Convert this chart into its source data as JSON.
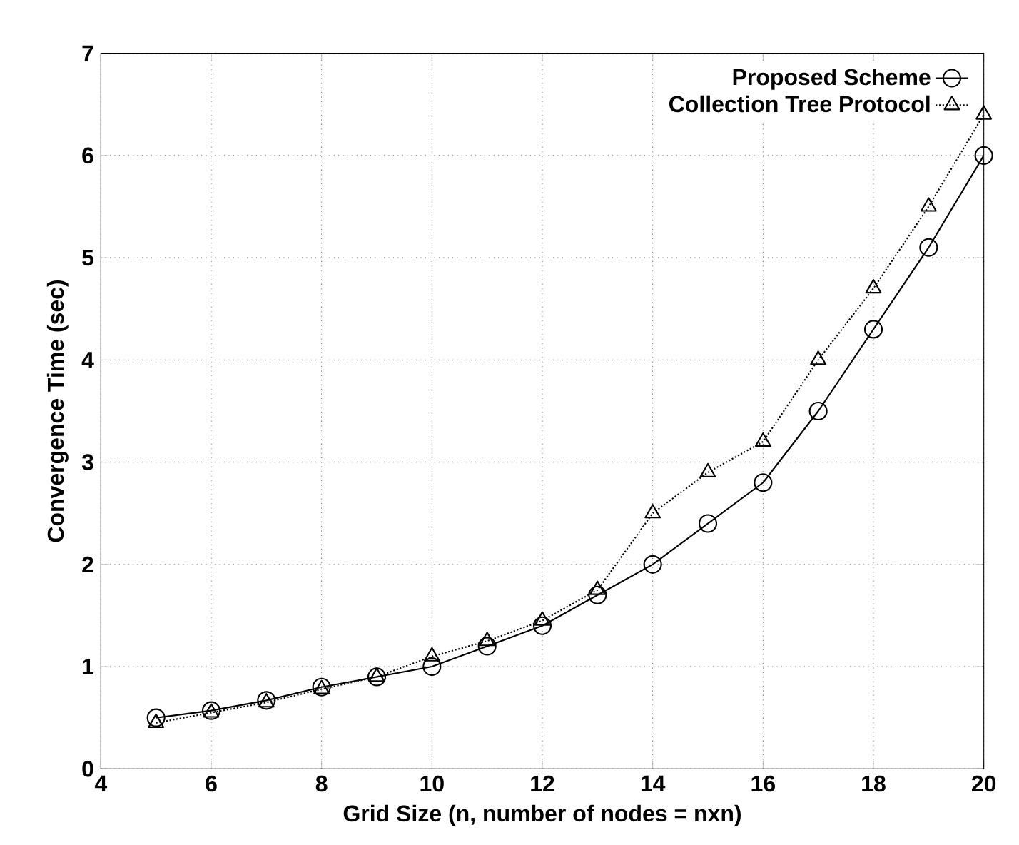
{
  "chart_data": {
    "type": "line",
    "xlabel": "Grid Size (n, number of nodes = nxn)",
    "ylabel": "Convergence Time (sec)",
    "x": [
      5,
      6,
      7,
      8,
      9,
      10,
      11,
      12,
      13,
      14,
      15,
      16,
      17,
      18,
      19,
      20
    ],
    "series": [
      {
        "name": "Proposed Scheme",
        "color": "#000000",
        "marker": "circle",
        "line_style": "solid",
        "values": [
          0.5,
          0.57,
          0.67,
          0.8,
          0.9,
          1.0,
          1.2,
          1.4,
          1.7,
          2.0,
          2.4,
          2.8,
          3.5,
          4.3,
          5.1,
          6.0
        ]
      },
      {
        "name": "Collection Tree Protocol",
        "color": "#000000",
        "marker": "triangle",
        "line_style": "dotted",
        "values": [
          0.45,
          0.55,
          0.65,
          0.78,
          0.9,
          1.1,
          1.25,
          1.45,
          1.75,
          2.5,
          2.9,
          3.2,
          4.0,
          4.7,
          5.5,
          6.4
        ]
      }
    ],
    "xlim": [
      4,
      20
    ],
    "xticks": [
      4,
      6,
      8,
      10,
      12,
      14,
      16,
      18,
      20
    ],
    "ylim": [
      0,
      7
    ],
    "yticks": [
      0,
      1,
      2,
      3,
      4,
      5,
      6,
      7
    ],
    "grid": true,
    "legend": "top right"
  }
}
